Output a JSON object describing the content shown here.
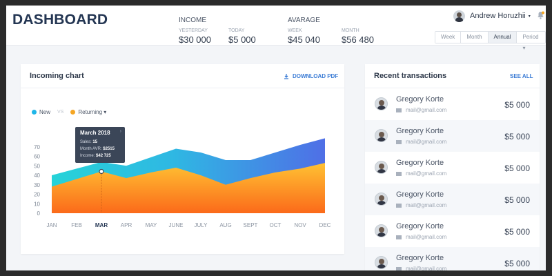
{
  "header": {
    "brand": "DASHBOARD",
    "income": {
      "title": "INCOME",
      "items": [
        {
          "label": "YESTERDAY",
          "value": "$30 000"
        },
        {
          "label": "TODAY",
          "value": "$5 000"
        }
      ]
    },
    "average": {
      "title": "AVARAGE",
      "items": [
        {
          "label": "WEEK",
          "value": "$45 040"
        },
        {
          "label": "MONTH",
          "value": "$56 480"
        }
      ]
    },
    "user": {
      "name": "Andrew Horuzhii",
      "caret": "▾"
    },
    "period_tabs": [
      "Week",
      "Month",
      "Annual",
      "Period ▾"
    ],
    "active_period": "Annual"
  },
  "incoming_chart": {
    "title": "Incoming chart",
    "download_label": "DOWNLOAD PDF",
    "legend": {
      "new": "New",
      "vs": "VS",
      "returning": "Returning ▾"
    },
    "colors": {
      "new": "#1fb6e8",
      "returning": "#f5a623",
      "accent_top": "#26d3d8",
      "accent_right": "#4f6fe6",
      "orange_top": "#ffc233",
      "orange_bottom": "#fb6a1a"
    },
    "tooltip": {
      "title": "March 2018",
      "arrow": "›",
      "lines": [
        {
          "label": "Sales:",
          "value": "15"
        },
        {
          "label": "Month AVR:",
          "value": "$2515"
        },
        {
          "label": "Income:",
          "value": "$42 725"
        }
      ]
    }
  },
  "chart_data": {
    "type": "area",
    "categories": [
      "JAN",
      "FEB",
      "MAR",
      "APR",
      "MAY",
      "JUNE",
      "JULY",
      "AUG",
      "SEPT",
      "OCT",
      "NOV",
      "DEC"
    ],
    "highlight_category": "MAR",
    "y_ticks": [
      0,
      10,
      20,
      30,
      40,
      50,
      60,
      70
    ],
    "ylim": [
      0,
      80
    ],
    "series": [
      {
        "name": "New",
        "values": [
          40,
          47,
          54,
          50,
          59,
          68,
          64,
          56,
          56,
          64,
          72,
          79
        ]
      },
      {
        "name": "Returning",
        "values": [
          28,
          36,
          44,
          37,
          43,
          48,
          40,
          30,
          37,
          43,
          47,
          53
        ]
      }
    ]
  },
  "transactions": {
    "title": "Recent transactions",
    "see_all": "SEE ALL",
    "items": [
      {
        "name": "Gregory Korte",
        "email": "mail@gmail.com",
        "amount": "$5 000"
      },
      {
        "name": "Gregory Korte",
        "email": "mail@gmail.com",
        "amount": "$5 000"
      },
      {
        "name": "Gregory Korte",
        "email": "mail@gmail.com",
        "amount": "$5 000"
      },
      {
        "name": "Gregory Korte",
        "email": "mail@gmail.com",
        "amount": "$5 000"
      },
      {
        "name": "Gregory Korte",
        "email": "mail@gmail.com",
        "amount": "$5 000"
      },
      {
        "name": "Gregory Korte",
        "email": "mail@gmail.com",
        "amount": "$5 000"
      }
    ]
  }
}
